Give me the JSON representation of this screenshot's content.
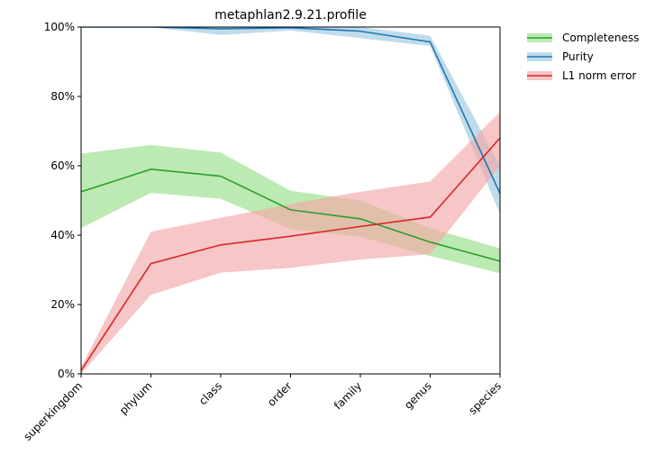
{
  "chart_data": {
    "type": "line",
    "title": "metaphlan2.9.21.profile",
    "xlabel": "",
    "ylabel": "",
    "categories": [
      "superkingdom",
      "phylum",
      "class",
      "order",
      "family",
      "genus",
      "species"
    ],
    "ylim": [
      0,
      1
    ],
    "y_ticks": [
      0,
      0.2,
      0.4,
      0.6,
      0.8,
      1.0
    ],
    "y_tick_labels": [
      "0%",
      "20%",
      "40%",
      "60%",
      "80%",
      "100%"
    ],
    "grid": false,
    "legend_position": "outside-top-right",
    "series": [
      {
        "name": "Completeness",
        "color": "#2ca02c",
        "fill_color": "#98df8a",
        "values": [
          0.525,
          0.59,
          0.57,
          0.473,
          0.447,
          0.38,
          0.325
        ],
        "lower": [
          0.42,
          0.522,
          0.505,
          0.418,
          0.395,
          0.34,
          0.29
        ],
        "upper": [
          0.635,
          0.66,
          0.638,
          0.528,
          0.5,
          0.42,
          0.362
        ]
      },
      {
        "name": "Purity",
        "color": "#1f77b4",
        "fill_color": "#9ecae1",
        "values": [
          1.0,
          1.0,
          0.995,
          0.998,
          0.988,
          0.957,
          0.52
        ],
        "lower": [
          1.0,
          1.0,
          0.977,
          0.99,
          0.968,
          0.945,
          0.46
        ],
        "upper": [
          1.0,
          1.0,
          1.0,
          1.0,
          1.0,
          0.975,
          0.6
        ]
      },
      {
        "name": "L1 norm error",
        "color": "#d62728",
        "fill_color": "#f2a7a8",
        "values": [
          0.01,
          0.318,
          0.372,
          0.397,
          0.425,
          0.452,
          0.68
        ],
        "lower": [
          0.0,
          0.228,
          0.292,
          0.306,
          0.33,
          0.345,
          0.6
        ],
        "upper": [
          0.02,
          0.41,
          0.45,
          0.49,
          0.525,
          0.555,
          0.755
        ]
      }
    ]
  }
}
